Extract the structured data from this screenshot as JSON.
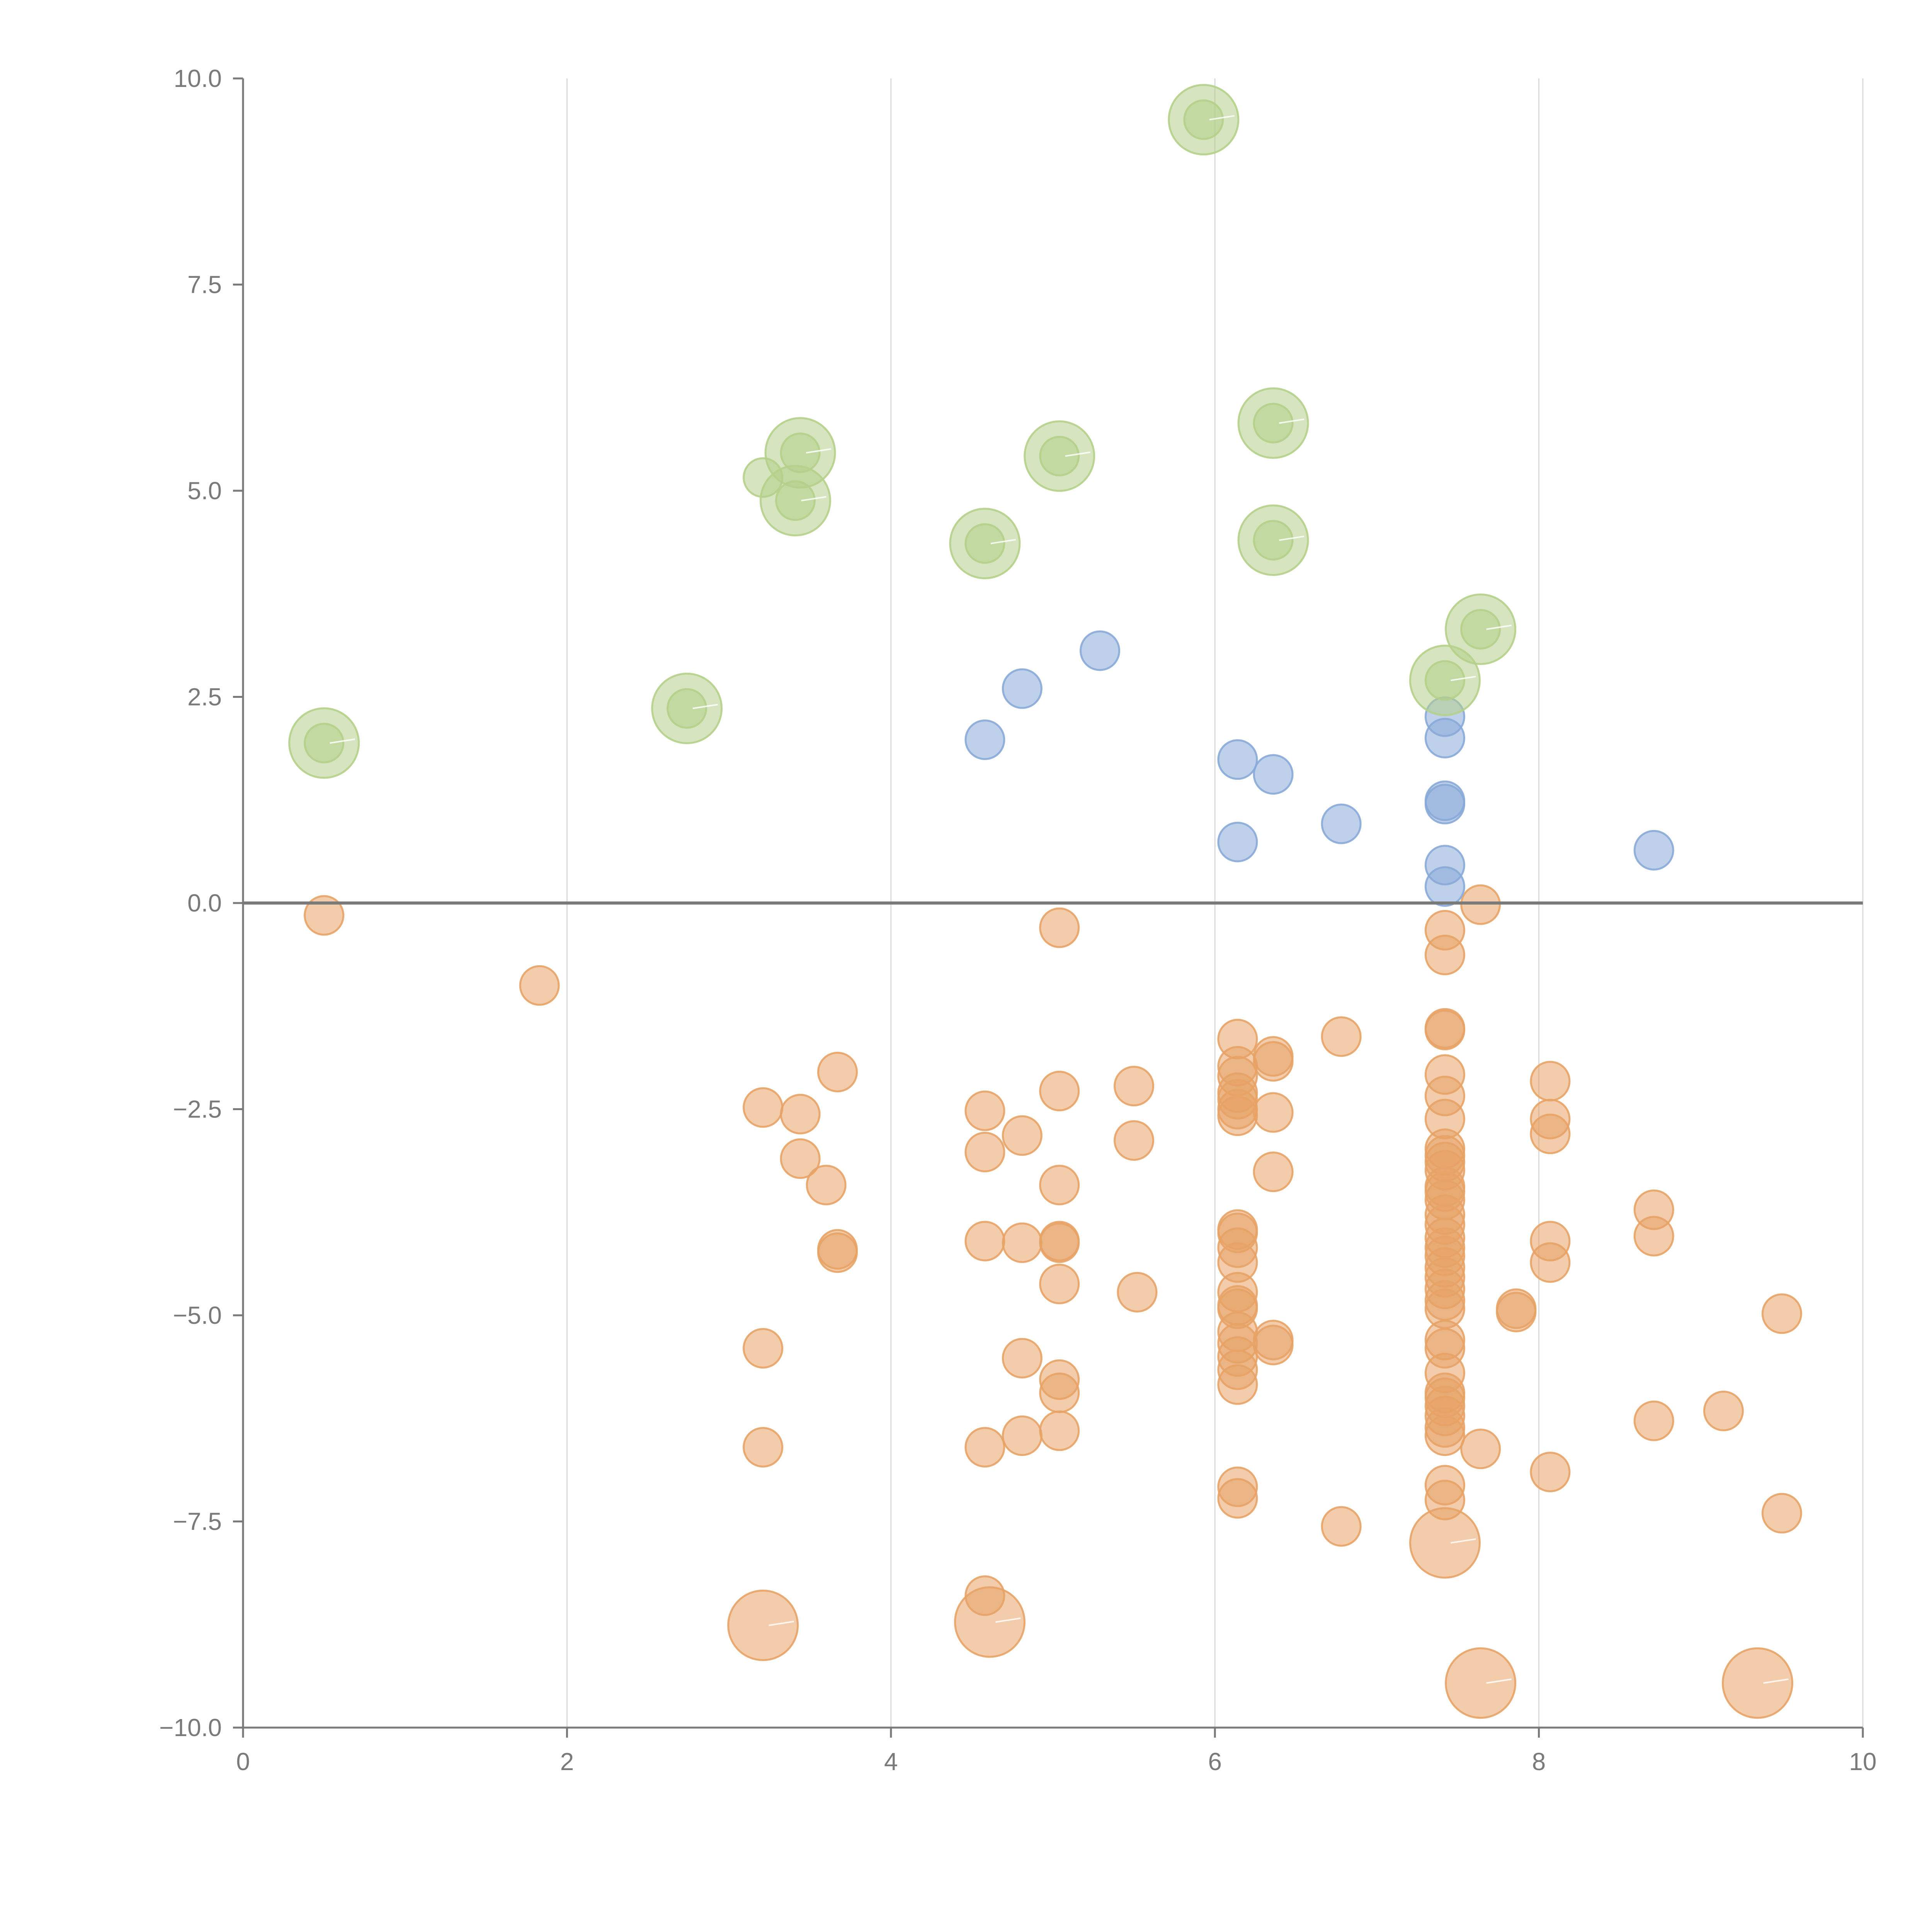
{
  "chart_data": {
    "type": "scatter",
    "title": "",
    "xlabel": "",
    "ylabel": "",
    "xlim": [
      0,
      10
    ],
    "ylim": [
      -10,
      10
    ],
    "x_ticks": [
      "0",
      "2",
      "4",
      "6",
      "8",
      "10"
    ],
    "y_ticks": [
      "10.0",
      "7.5",
      "5.0",
      "2.5",
      "0.0",
      "−2.5",
      "−5.0",
      "−7.5",
      "−10.0"
    ],
    "vertical_grid": true,
    "zero_line": true,
    "colors": {
      "orange": "#E8A366",
      "blue": "#88AAD8",
      "green": "#B5D08A",
      "axis": "#7a7a7a",
      "grid": "#d8d8d8"
    },
    "series": [
      {
        "color": "#E8A366",
        "points": [
          [
            0.5,
            -0.15
          ],
          [
            1.83,
            -1.0
          ],
          [
            3.21,
            -2.48
          ],
          [
            3.44,
            -2.56
          ],
          [
            3.67,
            -2.05
          ],
          [
            3.44,
            -3.1
          ],
          [
            3.6,
            -3.42
          ],
          [
            3.67,
            -4.2
          ],
          [
            3.67,
            -4.24
          ],
          [
            3.21,
            -5.4
          ],
          [
            3.21,
            -6.6
          ],
          [
            4.58,
            -2.52
          ],
          [
            4.58,
            -3.02
          ],
          [
            4.81,
            -2.82
          ],
          [
            4.58,
            -4.1
          ],
          [
            4.81,
            -4.12
          ],
          [
            4.58,
            -6.6
          ],
          [
            4.81,
            -6.46
          ],
          [
            4.81,
            -5.52
          ],
          [
            4.58,
            -8.4
          ],
          [
            5.04,
            -0.3
          ],
          [
            5.04,
            -2.28
          ],
          [
            5.04,
            -3.42
          ],
          [
            5.04,
            -4.1
          ],
          [
            5.04,
            -4.12
          ],
          [
            5.04,
            -4.62
          ],
          [
            5.04,
            -5.78
          ],
          [
            5.04,
            -5.94
          ],
          [
            5.04,
            -6.4
          ],
          [
            5.5,
            -2.22
          ],
          [
            5.5,
            -2.88
          ],
          [
            5.52,
            -4.72
          ],
          [
            6.14,
            -1.65
          ],
          [
            6.14,
            -1.98
          ],
          [
            6.14,
            -2.1
          ],
          [
            6.14,
            -2.3
          ],
          [
            6.14,
            -2.38
          ],
          [
            6.14,
            -2.5
          ],
          [
            6.14,
            -2.58
          ],
          [
            6.14,
            -3.96
          ],
          [
            6.14,
            -4.0
          ],
          [
            6.14,
            -4.18
          ],
          [
            6.14,
            -4.36
          ],
          [
            6.14,
            -4.72
          ],
          [
            6.14,
            -4.88
          ],
          [
            6.14,
            -4.92
          ],
          [
            6.14,
            -5.2
          ],
          [
            6.14,
            -5.34
          ],
          [
            6.14,
            -5.5
          ],
          [
            6.14,
            -5.66
          ],
          [
            6.14,
            -5.84
          ],
          [
            6.14,
            -7.08
          ],
          [
            6.14,
            -7.22
          ],
          [
            6.36,
            -1.86
          ],
          [
            6.36,
            -1.92
          ],
          [
            6.36,
            -2.54
          ],
          [
            6.36,
            -3.26
          ],
          [
            6.36,
            -5.3
          ],
          [
            6.36,
            -5.36
          ],
          [
            6.78,
            -1.62
          ],
          [
            6.78,
            -7.56
          ],
          [
            7.42,
            -0.33
          ],
          [
            7.42,
            -0.63
          ],
          [
            7.42,
            -1.52
          ],
          [
            7.42,
            -1.54
          ],
          [
            7.42,
            -2.08
          ],
          [
            7.42,
            -2.34
          ],
          [
            7.42,
            -2.62
          ],
          [
            7.42,
            -2.98
          ],
          [
            7.42,
            -3.06
          ],
          [
            7.42,
            -3.14
          ],
          [
            7.42,
            -3.24
          ],
          [
            7.42,
            -3.44
          ],
          [
            7.42,
            -3.5
          ],
          [
            7.42,
            -3.6
          ],
          [
            7.42,
            -3.78
          ],
          [
            7.42,
            -3.9
          ],
          [
            7.42,
            -4.06
          ],
          [
            7.42,
            -4.18
          ],
          [
            7.42,
            -4.28
          ],
          [
            7.42,
            -4.42
          ],
          [
            7.42,
            -4.54
          ],
          [
            7.42,
            -4.68
          ],
          [
            7.42,
            -4.82
          ],
          [
            7.42,
            -4.92
          ],
          [
            7.42,
            -5.3
          ],
          [
            7.42,
            -5.4
          ],
          [
            7.42,
            -5.7
          ],
          [
            7.42,
            -5.94
          ],
          [
            7.42,
            -6.0
          ],
          [
            7.42,
            -6.1
          ],
          [
            7.42,
            -6.22
          ],
          [
            7.42,
            -6.36
          ],
          [
            7.42,
            -6.46
          ],
          [
            7.42,
            -7.06
          ],
          [
            7.42,
            -7.24
          ],
          [
            7.64,
            -0.02
          ],
          [
            7.64,
            -6.62
          ],
          [
            7.86,
            -4.92
          ],
          [
            7.86,
            -4.96
          ],
          [
            8.07,
            -2.16
          ],
          [
            8.07,
            -2.62
          ],
          [
            8.07,
            -2.8
          ],
          [
            8.07,
            -4.1
          ],
          [
            8.07,
            -4.36
          ],
          [
            8.07,
            -6.9
          ],
          [
            8.71,
            -3.72
          ],
          [
            8.71,
            -4.04
          ],
          [
            8.71,
            -6.28
          ],
          [
            9.14,
            -6.16
          ],
          [
            9.5,
            -4.98
          ],
          [
            9.5,
            -7.4
          ]
        ]
      },
      {
        "color": "#88AAD8",
        "points": [
          [
            4.58,
            1.98
          ],
          [
            4.81,
            2.6
          ],
          [
            5.29,
            3.06
          ],
          [
            6.14,
            1.74
          ],
          [
            6.14,
            0.74
          ],
          [
            6.36,
            1.56
          ],
          [
            6.78,
            0.96
          ],
          [
            7.42,
            2.26
          ],
          [
            7.42,
            2.0
          ],
          [
            7.42,
            1.24
          ],
          [
            7.42,
            1.2
          ],
          [
            7.42,
            0.46
          ],
          [
            7.42,
            0.2
          ],
          [
            8.71,
            0.64
          ]
        ]
      },
      {
        "color": "#B5D08A",
        "points": [
          [
            0.5,
            1.94
          ],
          [
            2.74,
            2.36
          ],
          [
            3.21,
            5.16
          ],
          [
            3.44,
            5.46
          ],
          [
            3.41,
            4.88
          ],
          [
            4.58,
            4.36
          ],
          [
            5.04,
            5.42
          ],
          [
            5.93,
            9.5
          ],
          [
            6.36,
            5.82
          ],
          [
            6.36,
            4.4
          ],
          [
            7.64,
            3.32
          ],
          [
            7.42,
            2.7
          ]
        ]
      }
    ],
    "large_points": [
      {
        "color": "#B5D08A",
        "values": [
          [
            0.5,
            1.94
          ],
          [
            2.74,
            2.36
          ],
          [
            3.44,
            5.46
          ],
          [
            3.41,
            4.88
          ],
          [
            4.58,
            4.36
          ],
          [
            5.04,
            5.42
          ],
          [
            5.93,
            9.5
          ],
          [
            6.36,
            5.82
          ],
          [
            6.36,
            4.4
          ],
          [
            7.64,
            3.32
          ],
          [
            7.42,
            2.7
          ]
        ]
      },
      {
        "color": "#E8A366",
        "values": [
          [
            3.21,
            -8.76
          ],
          [
            4.61,
            -8.72
          ],
          [
            7.42,
            -7.76
          ],
          [
            7.64,
            -9.46
          ],
          [
            9.35,
            -9.46
          ]
        ]
      }
    ]
  }
}
